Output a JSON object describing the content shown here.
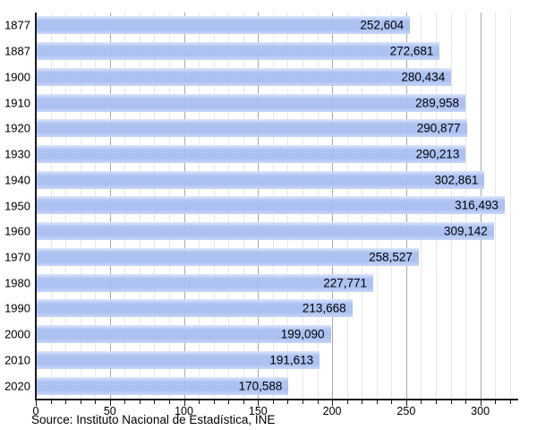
{
  "chart_data": {
    "type": "bar",
    "orientation": "horizontal",
    "title": "",
    "categories": [
      "1877",
      "1887",
      "1900",
      "1910",
      "1920",
      "1930",
      "1940",
      "1950",
      "1960",
      "1970",
      "1980",
      "1990",
      "2000",
      "2010",
      "2020"
    ],
    "values": [
      252604,
      272681,
      280434,
      289958,
      290877,
      290213,
      302861,
      316493,
      309142,
      258527,
      227771,
      213668,
      199090,
      191613,
      170588
    ],
    "value_labels": [
      "252,604",
      "272,681",
      "280,434",
      "289,958",
      "290,877",
      "290,213",
      "302,861",
      "316,493",
      "309,142",
      "258,527",
      "227,771",
      "213,668",
      "199,090",
      "191,613",
      "170,588"
    ],
    "xlabel": "",
    "ylabel": "",
    "x_axis": {
      "unit_divisor": 1000,
      "min": 0,
      "max": 325,
      "major_tick_step": 50,
      "minor_tick_step": 10,
      "last_tick": 320,
      "tick_labels": [
        "0",
        "50",
        "100",
        "150",
        "200",
        "250",
        "300"
      ]
    },
    "grid": "vertical, minor every 10 (light), major every 50 (dark)",
    "legend": null
  },
  "source_note": "Source: Instituto Nacional de Estadística, INE",
  "colors": {
    "background": "#ffffff",
    "bar_top": "rgba(220,230,251,0.96)",
    "bar_mid": "rgba(171,192,242,0.94)",
    "bar_mid2": "rgba(166,188,241,0.94)",
    "bar_bottom": "rgba(199,213,248,0.96)",
    "grid_minor": "#e7e7e7",
    "grid_major": "#a8a8a8",
    "axis": "#1a1a1a",
    "text": "#000000"
  }
}
